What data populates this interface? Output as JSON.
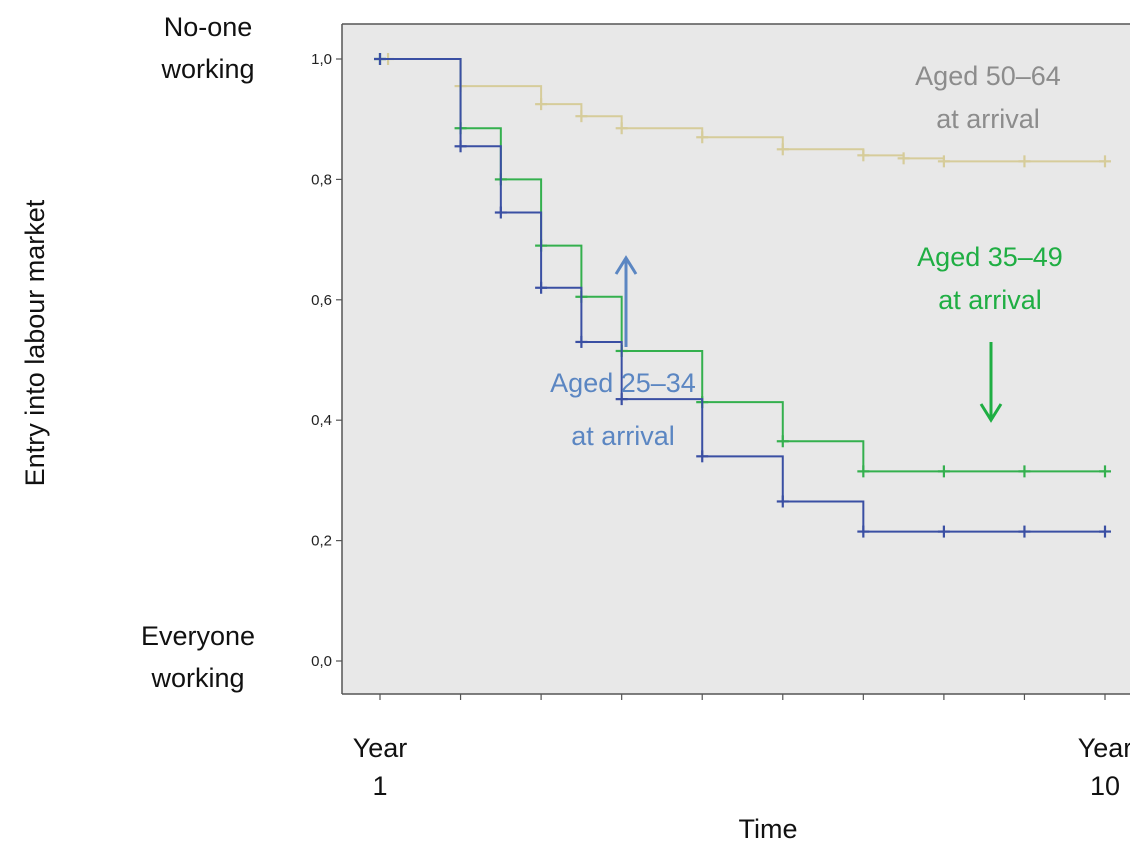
{
  "chart_data": {
    "type": "line",
    "step": true,
    "xlabel": "Time",
    "ylabel": "Entry into labour market",
    "ylim": [
      0,
      1.05
    ],
    "grid": false,
    "background": "#e8e8e8",
    "x_ticks": [
      1,
      2,
      3,
      4,
      5,
      6,
      7,
      8,
      9,
      10
    ],
    "x_tick_labels": [
      {
        "x": 1,
        "line1": "Year",
        "line2": "1"
      },
      {
        "x": 10,
        "line1": "Year",
        "line2": "10"
      }
    ],
    "y_ticks": [
      {
        "value": 0.0,
        "label": "0,0"
      },
      {
        "value": 0.2,
        "label": "0,2"
      },
      {
        "value": 0.4,
        "label": "0,4"
      },
      {
        "value": 0.6,
        "label": "0,6"
      },
      {
        "value": 0.8,
        "label": "0,8"
      },
      {
        "value": 1.0,
        "label": "1,0"
      }
    ],
    "y_end_labels": {
      "top": {
        "line1": "No-one",
        "line2": "working"
      },
      "bottom": {
        "line1": "Everyone",
        "line2": "working"
      }
    },
    "series": [
      {
        "name": "Aged 50–64 at arrival",
        "label_lines": [
          "Aged 50–64",
          "at arrival"
        ],
        "color": "#d6cc9a",
        "label_color": "#8c8c8c",
        "x": [
          1.1,
          2.0,
          3.0,
          3.5,
          4.0,
          5.0,
          6.0,
          7.0,
          7.5,
          8.0,
          9.0,
          10.0
        ],
        "y": [
          1.0,
          0.955,
          0.925,
          0.905,
          0.885,
          0.87,
          0.85,
          0.84,
          0.835,
          0.83,
          0.83,
          0.83
        ]
      },
      {
        "name": "Aged 35–49 at arrival",
        "label_lines": [
          "Aged 35–49",
          "at arrival"
        ],
        "color": "#34b04e",
        "label_color": "#1fae43",
        "x": [
          1.0,
          2.0,
          2.5,
          3.0,
          3.5,
          4.0,
          5.0,
          6.0,
          7.0,
          8.0,
          9.0,
          10.0
        ],
        "y": [
          1.0,
          0.885,
          0.8,
          0.69,
          0.605,
          0.515,
          0.43,
          0.365,
          0.315,
          0.315,
          0.315,
          0.315
        ]
      },
      {
        "name": "Aged 25–34 at arrival",
        "label_lines": [
          "Aged 25–34",
          "at arrival"
        ],
        "color": "#3a4fa3",
        "label_color": "#5b86c2",
        "x": [
          1.0,
          2.0,
          2.5,
          3.0,
          3.5,
          4.0,
          5.0,
          6.0,
          7.0,
          8.0,
          9.0,
          10.0
        ],
        "y": [
          1.0,
          0.855,
          0.745,
          0.62,
          0.53,
          0.435,
          0.34,
          0.265,
          0.215,
          0.215,
          0.215,
          0.215
        ]
      }
    ]
  }
}
